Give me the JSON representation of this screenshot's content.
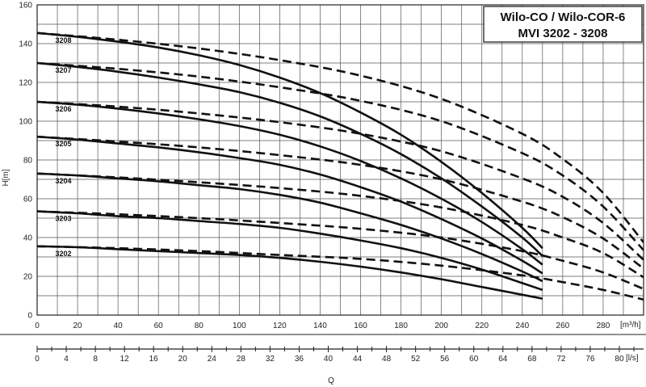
{
  "chart_data": {
    "type": "line",
    "title_lines": [
      "Wilo-CO / Wilo-COR-6",
      "MVI 3202  - 3208"
    ],
    "ylabel": "H[m]",
    "xlabel": "Q",
    "x_unit": "[m³/h]",
    "x2_unit": "[l/s]",
    "xlim": [
      0,
      300
    ],
    "ylim": [
      0,
      160
    ],
    "x2lim": [
      0,
      83.33
    ],
    "x_ticks": [
      "0",
      "20",
      "40",
      "60",
      "80",
      "100",
      "120",
      "140",
      "160",
      "180",
      "200",
      "220",
      "240",
      "260",
      "280"
    ],
    "x_tick_values": [
      0,
      20,
      40,
      60,
      80,
      100,
      120,
      140,
      160,
      180,
      200,
      220,
      240,
      260,
      280
    ],
    "y_ticks": [
      "0",
      "20",
      "40",
      "60",
      "80",
      "100",
      "120",
      "140",
      "160"
    ],
    "y_tick_values": [
      0,
      20,
      40,
      60,
      80,
      100,
      120,
      140,
      160
    ],
    "x2_ticks": [
      "0",
      "4",
      "8",
      "12",
      "16",
      "20",
      "24",
      "28",
      "32",
      "36",
      "40",
      "44",
      "48",
      "52",
      "56",
      "60",
      "64",
      "68",
      "72",
      "76",
      "80"
    ],
    "x2_tick_values": [
      0,
      4,
      8,
      12,
      16,
      20,
      24,
      28,
      32,
      36,
      40,
      44,
      48,
      52,
      56,
      60,
      64,
      68,
      72,
      76,
      80
    ],
    "grid": true,
    "series": [
      {
        "name": "3202",
        "label_x": 9,
        "solid": {
          "x": [
            0,
            20,
            40,
            60,
            80,
            100,
            120,
            140,
            160,
            180,
            200,
            220,
            240,
            250
          ],
          "y": [
            35.5,
            35,
            34,
            33,
            32,
            31,
            29.5,
            27.5,
            25,
            22,
            18.5,
            14.5,
            10.5,
            8.5
          ]
        },
        "dashed": {
          "x": [
            0,
            40,
            80,
            120,
            160,
            200,
            240,
            260,
            280,
            300
          ],
          "y": [
            35.5,
            34.5,
            33,
            31,
            29,
            25.5,
            20.5,
            17,
            13,
            8
          ]
        }
      },
      {
        "name": "3203",
        "label_x": 9,
        "solid": {
          "x": [
            0,
            20,
            40,
            60,
            80,
            100,
            120,
            140,
            160,
            180,
            200,
            220,
            240,
            250
          ],
          "y": [
            53.5,
            52.5,
            51,
            50,
            48.5,
            47,
            45,
            42,
            38.5,
            34.5,
            29.5,
            23.5,
            16.5,
            13
          ]
        },
        "dashed": {
          "x": [
            0,
            40,
            80,
            120,
            160,
            200,
            240,
            260,
            280,
            300
          ],
          "y": [
            53.5,
            52,
            50,
            47.5,
            44.5,
            40,
            33,
            28,
            22,
            13.5
          ]
        }
      },
      {
        "name": "3204",
        "label_x": 9,
        "solid": {
          "x": [
            0,
            20,
            40,
            60,
            80,
            100,
            120,
            140,
            160,
            180,
            200,
            220,
            240,
            250
          ],
          "y": [
            73,
            72,
            70.5,
            69,
            67,
            65,
            62,
            58,
            52.5,
            46.5,
            39.5,
            31.5,
            22.5,
            17.5
          ]
        },
        "dashed": {
          "x": [
            0,
            40,
            80,
            120,
            160,
            200,
            240,
            260,
            280,
            300
          ],
          "y": [
            73,
            71,
            68.5,
            65.5,
            61.5,
            55.5,
            46.5,
            40,
            32,
            19.5
          ]
        }
      },
      {
        "name": "3205",
        "label_x": 9,
        "solid": {
          "x": [
            0,
            20,
            40,
            60,
            80,
            100,
            120,
            140,
            160,
            180,
            200,
            220,
            240,
            250
          ],
          "y": [
            92,
            90.5,
            88.5,
            86.5,
            84,
            81,
            77.5,
            72.5,
            66,
            58.5,
            49.5,
            39.5,
            28,
            21.5
          ]
        },
        "dashed": {
          "x": [
            0,
            40,
            80,
            120,
            160,
            200,
            240,
            260,
            280,
            300
          ],
          "y": [
            92,
            89.5,
            86.5,
            82.5,
            77.5,
            70,
            58.5,
            50.5,
            39.5,
            24
          ]
        }
      },
      {
        "name": "3206",
        "label_x": 9,
        "solid": {
          "x": [
            0,
            20,
            40,
            60,
            80,
            100,
            120,
            140,
            160,
            180,
            200,
            220,
            240,
            250
          ],
          "y": [
            110,
            108.5,
            106.5,
            104,
            101,
            97.5,
            93,
            87,
            79.5,
            70.5,
            60,
            48,
            34,
            26
          ]
        },
        "dashed": {
          "x": [
            0,
            40,
            80,
            120,
            160,
            200,
            240,
            260,
            280,
            300
          ],
          "y": [
            110,
            107.5,
            104,
            99.5,
            93.5,
            84.5,
            70.5,
            61,
            47.5,
            28.5
          ]
        }
      },
      {
        "name": "3207",
        "label_x": 9,
        "solid": {
          "x": [
            0,
            20,
            40,
            60,
            80,
            100,
            120,
            140,
            160,
            180,
            200,
            220,
            240,
            250
          ],
          "y": [
            130,
            128,
            125.5,
            122.5,
            119,
            115,
            109.5,
            102.5,
            93.5,
            83,
            70.5,
            56,
            40,
            30.5
          ]
        },
        "dashed": {
          "x": [
            0,
            40,
            80,
            120,
            160,
            200,
            240,
            260,
            280,
            300
          ],
          "y": [
            130,
            127,
            123,
            117.5,
            110.5,
            100,
            83.5,
            72,
            56,
            33.5
          ]
        }
      },
      {
        "name": "3208",
        "label_x": 9,
        "solid": {
          "x": [
            0,
            20,
            40,
            60,
            80,
            100,
            120,
            140,
            160,
            180,
            200,
            220,
            240,
            250
          ],
          "y": [
            145.5,
            143.5,
            141,
            138,
            134,
            129,
            122.5,
            114.5,
            104.5,
            93,
            79,
            63,
            45,
            34.5
          ]
        },
        "dashed": {
          "x": [
            0,
            40,
            80,
            120,
            160,
            200,
            240,
            260,
            280,
            300
          ],
          "y": [
            145.5,
            142,
            137.5,
            131.5,
            123.5,
            111.5,
            93.5,
            80.5,
            63,
            37.5
          ]
        }
      }
    ]
  }
}
